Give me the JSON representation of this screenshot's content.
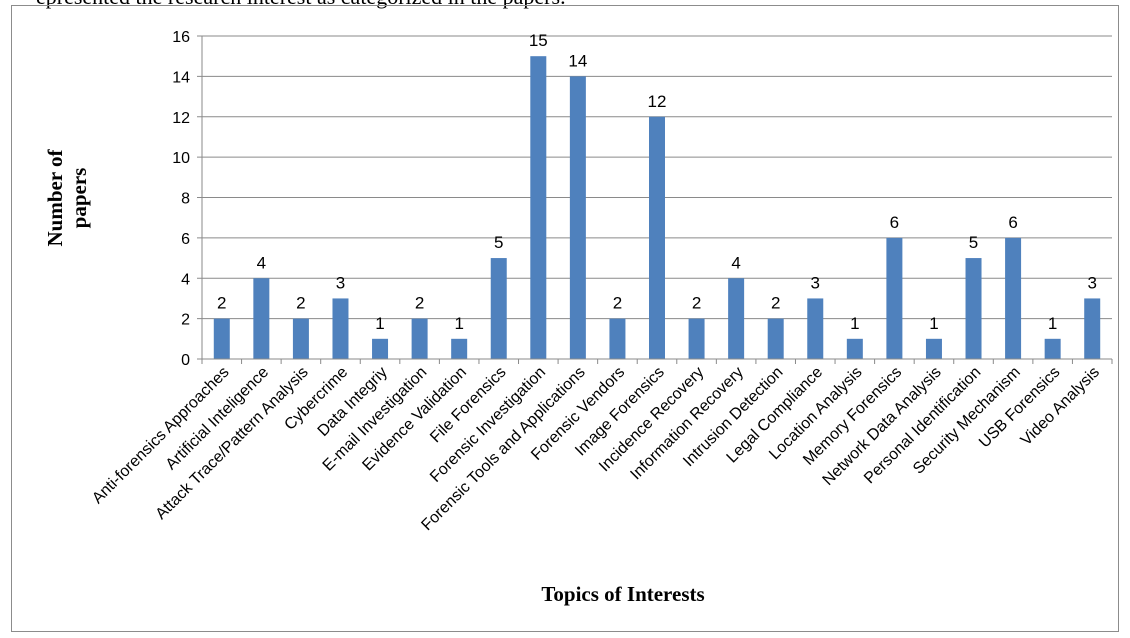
{
  "header_text": "epresented the research interest as categorized in the papers.",
  "chart_data": {
    "type": "bar",
    "title": "",
    "xlabel": "Topics of Interests",
    "ylabel_lines": [
      "Number of",
      "papers"
    ],
    "ylim": [
      0,
      16
    ],
    "yticks": [
      0,
      2,
      4,
      6,
      8,
      10,
      12,
      14,
      16
    ],
    "grid": true,
    "bar_color": "#4f81bd",
    "categories": [
      "Anti-forensics Approaches",
      "Artificial Inteligence",
      "Attack Trace/Pattern Analysis",
      "Cybercrime",
      "Data Integriy",
      "E-mail Investigation",
      "Evidence Validation",
      "File Forensics",
      "Forensic Investigation",
      "Forensic Tools and Applications",
      "Forensic Vendors",
      "Image Forensics",
      "Incidence Recovery",
      "Information Recovery",
      "Intrusion Detection",
      "Legal Compliance",
      "Location Analysis",
      "Memory Forensics",
      "Network Data Analysis",
      "Personal Identification",
      "Security Mechanism",
      "USB Forensics",
      "Video Analysis"
    ],
    "values": [
      2,
      4,
      2,
      3,
      1,
      2,
      1,
      5,
      15,
      14,
      2,
      12,
      2,
      4,
      2,
      3,
      1,
      6,
      1,
      5,
      6,
      1,
      3
    ]
  }
}
